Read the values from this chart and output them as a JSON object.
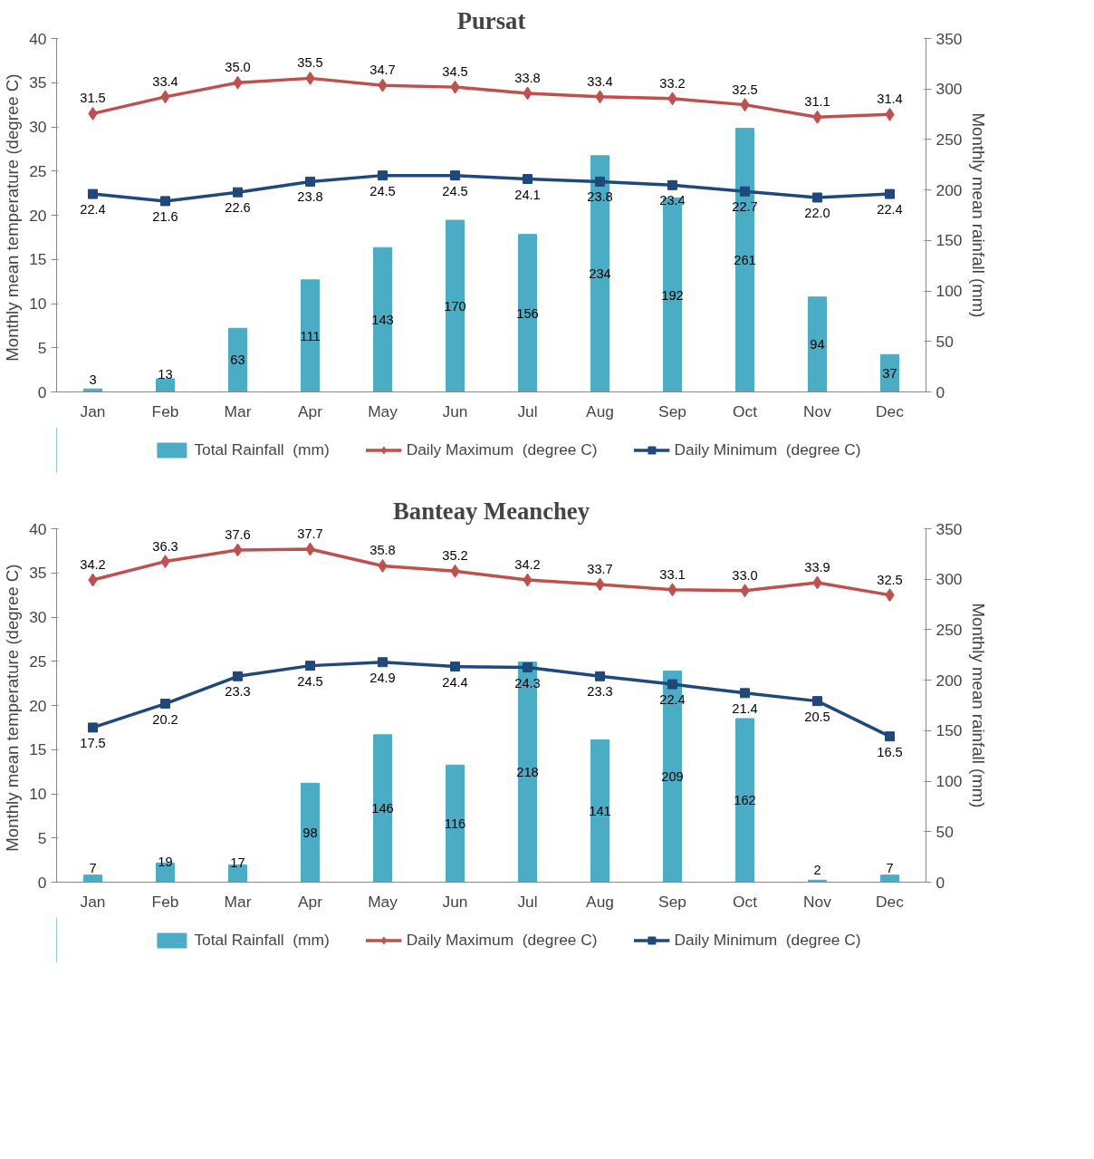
{
  "chart_data": [
    {
      "type": "bar",
      "title": "Pursat",
      "categories": [
        "Jan",
        "Feb",
        "Mar",
        "Apr",
        "May",
        "Jun",
        "Jul",
        "Aug",
        "Sep",
        "Oct",
        "Nov",
        "Dec"
      ],
      "ylabel": "Monthly mean temperature  (degree C)",
      "y2label": "Monthly mean rainfall (mm)",
      "ylim": [
        0,
        40
      ],
      "yticks": [
        0,
        5,
        10,
        15,
        20,
        25,
        30,
        35,
        40
      ],
      "y2lim": [
        0,
        350
      ],
      "y2ticks": [
        0,
        50,
        100,
        150,
        200,
        250,
        300,
        350
      ],
      "grid": false,
      "legend": "bottom",
      "series": [
        {
          "name": "Total Rainfall  (mm)",
          "axis": "y2",
          "color": "#4bacc6",
          "values": [
            3,
            13,
            63,
            111,
            143,
            170,
            156,
            234,
            192,
            261,
            94,
            37
          ],
          "value_labels": [
            "3",
            "13",
            "63",
            "111",
            "143",
            "170",
            "156",
            "234",
            "192",
            "261",
            "94",
            "37"
          ]
        },
        {
          "name": "Daily Maximum  (degree C)",
          "type": "line",
          "marker": "diamond",
          "color": "#c0504d",
          "values": [
            31.5,
            33.4,
            35.0,
            35.5,
            34.7,
            34.5,
            33.8,
            33.4,
            33.2,
            32.5,
            31.1,
            31.4
          ],
          "value_labels": [
            "31.5",
            "33.4",
            "35.0",
            "35.5",
            "34.7",
            "34.5",
            "33.8",
            "33.4",
            "33.2",
            "32.5",
            "31.1",
            "31.4"
          ]
        },
        {
          "name": "Daily Minimum  (degree C)",
          "type": "line",
          "marker": "square",
          "color": "#1f497d",
          "values": [
            22.4,
            21.6,
            22.6,
            23.8,
            24.5,
            24.5,
            24.1,
            23.8,
            23.4,
            22.7,
            22.0,
            22.4
          ],
          "value_labels": [
            "22.4",
            "21.6",
            "22.6",
            "23.8",
            "24.5",
            "24.5",
            "24.1",
            "23.8",
            "23.4",
            "22.7",
            "22.0",
            "22.4"
          ]
        }
      ]
    },
    {
      "type": "bar",
      "title": "Banteay Meanchey",
      "categories": [
        "Jan",
        "Feb",
        "Mar",
        "Apr",
        "May",
        "Jun",
        "Jul",
        "Aug",
        "Sep",
        "Oct",
        "Nov",
        "Dec"
      ],
      "ylabel": "Monthly mean temperature  (degree C)",
      "y2label": "Monthly mean rainfall (mm)",
      "ylim": [
        0,
        40
      ],
      "yticks": [
        0,
        5,
        10,
        15,
        20,
        25,
        30,
        35,
        40
      ],
      "y2lim": [
        0,
        350
      ],
      "y2ticks": [
        0,
        50,
        100,
        150,
        200,
        250,
        300,
        350
      ],
      "grid": false,
      "legend": "bottom",
      "series": [
        {
          "name": "Total Rainfall  (mm)",
          "axis": "y2",
          "color": "#4bacc6",
          "values": [
            7,
            19,
            17,
            98,
            146,
            116,
            218,
            141,
            209,
            162,
            2,
            7
          ],
          "value_labels": [
            "7",
            "19",
            "17",
            "98",
            "146",
            "116",
            "218",
            "141",
            "209",
            "162",
            "2",
            "7"
          ]
        },
        {
          "name": "Daily Maximum  (degree C)",
          "type": "line",
          "marker": "diamond",
          "color": "#c0504d",
          "values": [
            34.2,
            36.3,
            37.6,
            37.7,
            35.8,
            35.2,
            34.2,
            33.7,
            33.1,
            33.0,
            33.9,
            32.5
          ],
          "value_labels": [
            "34.2",
            "36.3",
            "37.6",
            "37.7",
            "35.8",
            "35.2",
            "34.2",
            "33.7",
            "33.1",
            "33.0",
            "33.9",
            "32.5"
          ]
        },
        {
          "name": "Daily Minimum  (degree C)",
          "type": "line",
          "marker": "square",
          "color": "#1f497d",
          "values": [
            17.5,
            20.2,
            23.3,
            24.5,
            24.9,
            24.4,
            24.3,
            23.3,
            22.4,
            21.4,
            20.5,
            16.5
          ],
          "value_labels": [
            "17.5",
            "20.2",
            "23.3",
            "24.5",
            "24.9",
            "24.4",
            "24.3",
            "23.3",
            "22.4",
            "21.4",
            "20.5",
            "16.5"
          ]
        }
      ]
    }
  ]
}
